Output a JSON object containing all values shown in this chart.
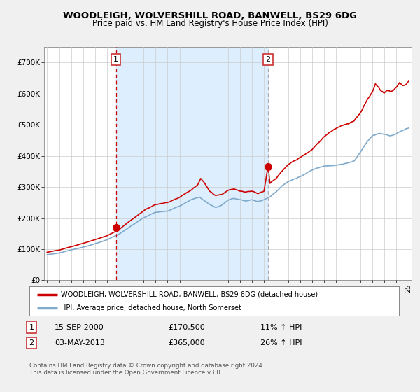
{
  "title": "WOODLEIGH, WOLVERSHILL ROAD, BANWELL, BS29 6DG",
  "subtitle": "Price paid vs. HM Land Registry's House Price Index (HPI)",
  "legend_line1": "WOODLEIGH, WOLVERSHILL ROAD, BANWELL, BS29 6DG (detached house)",
  "legend_line2": "HPI: Average price, detached house, North Somerset",
  "annotation1_date": "15-SEP-2000",
  "annotation1_price": "£170,500",
  "annotation1_hpi": "11% ↑ HPI",
  "annotation2_date": "03-MAY-2013",
  "annotation2_price": "£365,000",
  "annotation2_hpi": "26% ↑ HPI",
  "footnote": "Contains HM Land Registry data © Crown copyright and database right 2024.\nThis data is licensed under the Open Government Licence v3.0.",
  "red_line_color": "#cc0000",
  "blue_line_color": "#7faacc",
  "vline1_color": "#cc0000",
  "vline2_color": "#aaaaaa",
  "shade_color": "#ddeeff",
  "background_color": "#f0f0f0",
  "plot_bg_color": "#ffffff",
  "ylim": [
    0,
    750000
  ],
  "yticks": [
    0,
    100000,
    200000,
    300000,
    400000,
    500000,
    600000,
    700000
  ],
  "ytick_labels": [
    "£0",
    "£100K",
    "£200K",
    "£300K",
    "£400K",
    "£500K",
    "£600K",
    "£700K"
  ],
  "sale1_year": 2000.71,
  "sale1_value": 170500,
  "sale2_year": 2013.34,
  "sale2_value": 365000,
  "x_years": [
    1995.0,
    1995.08,
    1995.17,
    1995.25,
    1995.33,
    1995.42,
    1995.5,
    1995.58,
    1995.67,
    1995.75,
    1995.83,
    1995.92,
    1996.0,
    1996.08,
    1996.17,
    1996.25,
    1996.33,
    1996.42,
    1996.5,
    1996.58,
    1996.67,
    1996.75,
    1996.83,
    1996.92,
    1997.0,
    1997.08,
    1997.17,
    1997.25,
    1997.33,
    1997.42,
    1997.5,
    1997.58,
    1997.67,
    1997.75,
    1997.83,
    1997.92,
    1998.0,
    1998.08,
    1998.17,
    1998.25,
    1998.33,
    1998.42,
    1998.5,
    1998.58,
    1998.67,
    1998.75,
    1998.83,
    1998.92,
    1999.0,
    1999.08,
    1999.17,
    1999.25,
    1999.33,
    1999.42,
    1999.5,
    1999.58,
    1999.67,
    1999.75,
    1999.83,
    1999.92,
    2000.0,
    2000.08,
    2000.17,
    2000.25,
    2000.33,
    2000.42,
    2000.5,
    2000.58,
    2000.67,
    2000.75,
    2000.83,
    2000.92,
    2001.0,
    2001.08,
    2001.17,
    2001.25,
    2001.33,
    2001.42,
    2001.5,
    2001.58,
    2001.67,
    2001.75,
    2001.83,
    2001.92,
    2002.0,
    2002.08,
    2002.17,
    2002.25,
    2002.33,
    2002.42,
    2002.5,
    2002.58,
    2002.67,
    2002.75,
    2002.83,
    2002.92,
    2003.0,
    2003.08,
    2003.17,
    2003.25,
    2003.33,
    2003.42,
    2003.5,
    2003.58,
    2003.67,
    2003.75,
    2003.83,
    2003.92,
    2004.0,
    2004.08,
    2004.17,
    2004.25,
    2004.33,
    2004.42,
    2004.5,
    2004.58,
    2004.67,
    2004.75,
    2004.83,
    2004.92,
    2005.0,
    2005.08,
    2005.17,
    2005.25,
    2005.33,
    2005.42,
    2005.5,
    2005.58,
    2005.67,
    2005.75,
    2005.83,
    2005.92,
    2006.0,
    2006.08,
    2006.17,
    2006.25,
    2006.33,
    2006.42,
    2006.5,
    2006.58,
    2006.67,
    2006.75,
    2006.83,
    2006.92,
    2007.0,
    2007.08,
    2007.17,
    2007.25,
    2007.33,
    2007.42,
    2007.5,
    2007.58,
    2007.67,
    2007.75,
    2007.83,
    2007.92,
    2008.0,
    2008.08,
    2008.17,
    2008.25,
    2008.33,
    2008.42,
    2008.5,
    2008.58,
    2008.67,
    2008.75,
    2008.83,
    2008.92,
    2009.0,
    2009.08,
    2009.17,
    2009.25,
    2009.33,
    2009.42,
    2009.5,
    2009.58,
    2009.67,
    2009.75,
    2009.83,
    2009.92,
    2010.0,
    2010.08,
    2010.17,
    2010.25,
    2010.33,
    2010.42,
    2010.5,
    2010.58,
    2010.67,
    2010.75,
    2010.83,
    2010.92,
    2011.0,
    2011.08,
    2011.17,
    2011.25,
    2011.33,
    2011.42,
    2011.5,
    2011.58,
    2011.67,
    2011.75,
    2011.83,
    2011.92,
    2012.0,
    2012.08,
    2012.17,
    2012.25,
    2012.33,
    2012.42,
    2012.5,
    2012.58,
    2012.67,
    2012.75,
    2012.83,
    2012.92,
    2013.0,
    2013.08,
    2013.17,
    2013.25,
    2013.33,
    2013.42,
    2013.5,
    2013.58,
    2013.67,
    2013.75,
    2013.83,
    2013.92,
    2014.0,
    2014.08,
    2014.17,
    2014.25,
    2014.33,
    2014.42,
    2014.5,
    2014.58,
    2014.67,
    2014.75,
    2014.83,
    2014.92,
    2015.0,
    2015.08,
    2015.17,
    2015.25,
    2015.33,
    2015.42,
    2015.5,
    2015.58,
    2015.67,
    2015.75,
    2015.83,
    2015.92,
    2016.0,
    2016.08,
    2016.17,
    2016.25,
    2016.33,
    2016.42,
    2016.5,
    2016.58,
    2016.67,
    2016.75,
    2016.83,
    2016.92,
    2017.0,
    2017.08,
    2017.17,
    2017.25,
    2017.33,
    2017.42,
    2017.5,
    2017.58,
    2017.67,
    2017.75,
    2017.83,
    2017.92,
    2018.0,
    2018.08,
    2018.17,
    2018.25,
    2018.33,
    2018.42,
    2018.5,
    2018.58,
    2018.67,
    2018.75,
    2018.83,
    2018.92,
    2019.0,
    2019.08,
    2019.17,
    2019.25,
    2019.33,
    2019.42,
    2019.5,
    2019.58,
    2019.67,
    2019.75,
    2019.83,
    2019.92,
    2020.0,
    2020.08,
    2020.17,
    2020.25,
    2020.33,
    2020.42,
    2020.5,
    2020.58,
    2020.67,
    2020.75,
    2020.83,
    2020.92,
    2021.0,
    2021.08,
    2021.17,
    2021.25,
    2021.33,
    2021.42,
    2021.5,
    2021.58,
    2021.67,
    2021.75,
    2021.83,
    2021.92,
    2022.0,
    2022.08,
    2022.17,
    2022.25,
    2022.33,
    2022.42,
    2022.5,
    2022.58,
    2022.67,
    2022.75,
    2022.83,
    2022.92,
    2023.0,
    2023.08,
    2023.17,
    2023.25,
    2023.33,
    2023.42,
    2023.5,
    2023.58,
    2023.67,
    2023.75,
    2023.83,
    2023.92,
    2024.0,
    2024.08,
    2024.17,
    2024.25,
    2024.33,
    2024.42,
    2024.5,
    2024.58,
    2024.67,
    2024.75,
    2024.83,
    2024.92,
    2025.0
  ]
}
